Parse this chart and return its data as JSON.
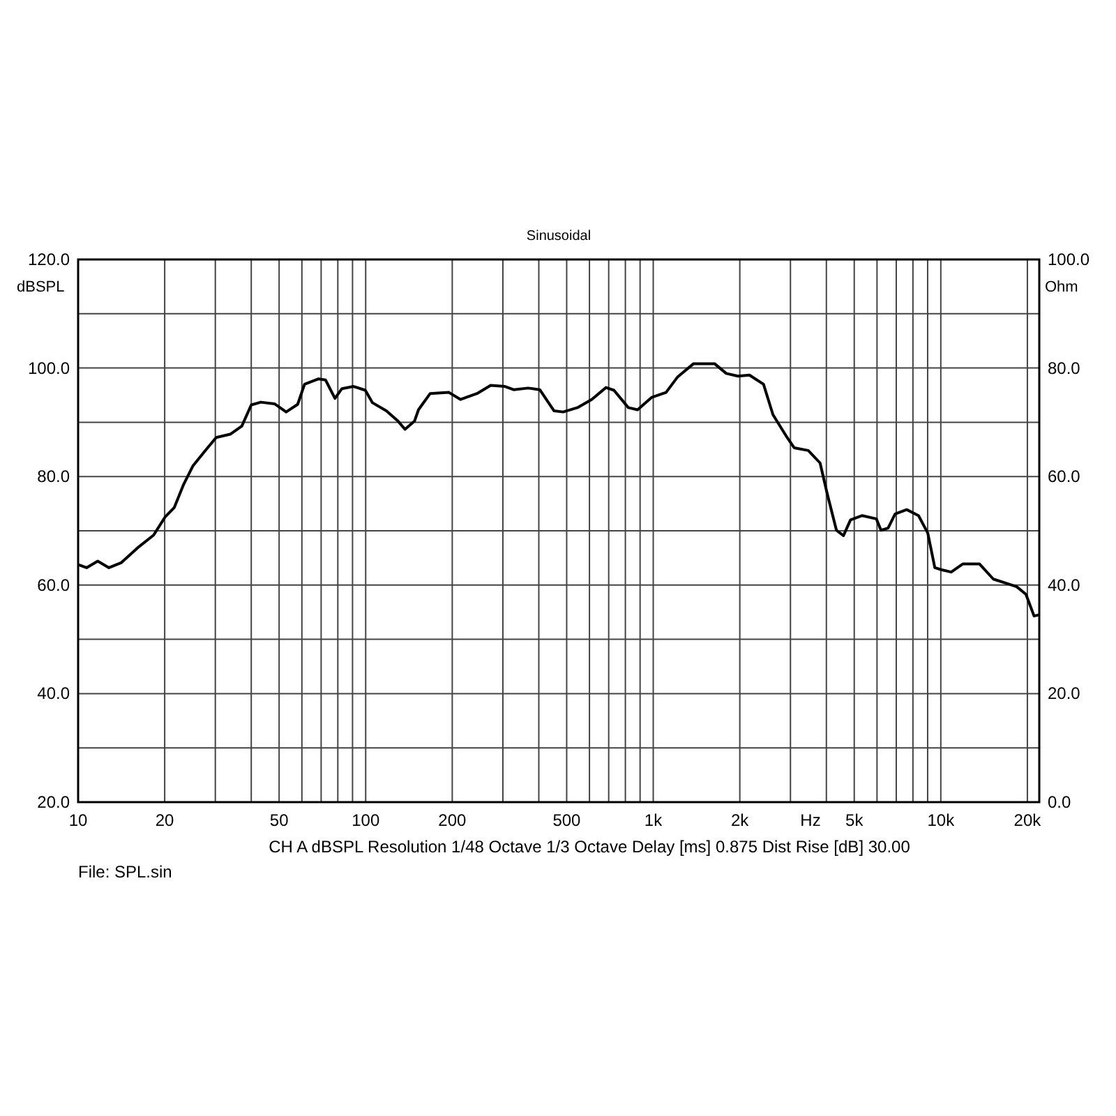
{
  "chart_data": {
    "type": "line",
    "title": "Sinusoidal",
    "xlabel": "Hz",
    "ylabel": "dBSPL",
    "y2label": "Ohm",
    "log": "x",
    "grid": true,
    "marker": "none",
    "line_style": "solid",
    "xlim": [
      10,
      22000
    ],
    "ylim": [
      20,
      120
    ],
    "y2lim": [
      0,
      100
    ],
    "xticks": [
      10,
      20,
      {
        "value": 30,
        "label": null
      },
      {
        "value": 40,
        "label": null
      },
      50,
      {
        "value": 60,
        "label": null
      },
      {
        "value": 70,
        "label": null
      },
      {
        "value": 80,
        "label": null
      },
      {
        "value": 90,
        "label": null
      },
      100,
      200,
      {
        "value": 300,
        "label": null
      },
      {
        "value": 400,
        "label": null
      },
      500,
      {
        "value": 600,
        "label": null
      },
      {
        "value": 700,
        "label": null
      },
      {
        "value": 800,
        "label": null
      },
      {
        "value": 900,
        "label": null
      },
      {
        "value": 1000,
        "label": "1k"
      },
      {
        "value": 2000,
        "label": "2k"
      },
      {
        "value": 3000,
        "label": null
      },
      {
        "value": 4000,
        "label": null
      },
      {
        "value": 5000,
        "label": "5k"
      },
      {
        "value": 6000,
        "label": null
      },
      {
        "value": 7000,
        "label": null
      },
      {
        "value": 8000,
        "label": null
      },
      {
        "value": 9000,
        "label": null
      },
      {
        "value": 10000,
        "label": "10k"
      },
      {
        "value": 20000,
        "label": "20k"
      }
    ],
    "yticks": [
      {
        "value": 20,
        "label": "20.0"
      },
      {
        "value": 30,
        "label": null
      },
      {
        "value": 40,
        "label": "40.0"
      },
      {
        "value": 50,
        "label": null
      },
      {
        "value": 60,
        "label": "60.0"
      },
      {
        "value": 70,
        "label": null
      },
      {
        "value": 80,
        "label": "80.0"
      },
      {
        "value": 90,
        "label": null
      },
      {
        "value": 100,
        "label": "100.0"
      },
      {
        "value": 110,
        "label": null
      },
      {
        "value": 120,
        "label": "120.0"
      }
    ],
    "y2ticks": [
      {
        "value": 0,
        "label": "0.0"
      },
      {
        "value": 20,
        "label": "20.0"
      },
      {
        "value": 40,
        "label": "40.0"
      },
      {
        "value": 60,
        "label": "60.0"
      },
      {
        "value": 80,
        "label": "80.0"
      },
      {
        "value": 100,
        "label": "100.0"
      }
    ],
    "x": [
      10.1,
      10.7,
      11.7,
      12.8,
      14.1,
      16.3,
      18.3,
      20.1,
      21.6,
      23.3,
      25.1,
      27.5,
      30.2,
      33.8,
      37.1,
      40,
      43.2,
      48.2,
      52.9,
      58,
      61.3,
      68.6,
      72.5,
      78.2,
      82.7,
      90.7,
      99.7,
      105.6,
      118,
      129.6,
      137,
      147.8,
      152.6,
      167.6,
      194.7,
      213.8,
      244,
      272,
      305,
      327,
      367,
      403,
      452,
      486,
      545,
      611,
      685,
      730,
      819,
      882,
      989,
      1108,
      1213,
      1381,
      1634,
      1794,
      1970,
      2160,
      2418,
      2608,
      2921,
      3090,
      3460,
      3803,
      4024,
      4336,
      4586,
      4853,
      5332,
      5970,
      6196,
      6556,
      6935,
      7612,
      8365,
      9008,
      9533,
      10090,
      10870,
      11940,
      13620,
      15230,
      16720,
      18360,
      19770,
      21100,
      21900
    ],
    "series": [
      {
        "color": "#000000",
        "values": [
          63.7,
          63.2,
          64.4,
          63.2,
          64.1,
          67.1,
          69.2,
          72.6,
          74.3,
          78.6,
          82,
          84.6,
          87.2,
          87.8,
          89.3,
          93.2,
          93.7,
          93.4,
          91.9,
          93.3,
          97,
          98,
          97.8,
          94.4,
          96.2,
          96.6,
          95.9,
          93.6,
          92.1,
          90.2,
          88.7,
          90.2,
          92.3,
          95.3,
          95.5,
          94.2,
          95.3,
          96.8,
          96.6,
          96,
          96.3,
          96,
          92.1,
          91.9,
          92.7,
          94.2,
          96.4,
          95.9,
          92.7,
          92.3,
          94.6,
          95.5,
          98.3,
          100.8,
          100.8,
          99,
          98.5,
          98.7,
          97,
          91.4,
          87.2,
          85.3,
          84.8,
          82.5,
          76.9,
          70.1,
          69.1,
          72,
          72.8,
          72.2,
          70.1,
          70.5,
          73.1,
          73.9,
          72.8,
          69.6,
          63.2,
          62.8,
          62.4,
          63.9,
          63.9,
          61.1,
          60.4,
          59.7,
          58.3,
          54.3,
          54.5
        ]
      }
    ],
    "annotations": [
      "CH A   dBSPL   Resolution 1/48 Octave   1/3 Octave   Delay [ms] 0.875   Dist Rise [dB] 30.00",
      "File: SPL.sin"
    ]
  }
}
